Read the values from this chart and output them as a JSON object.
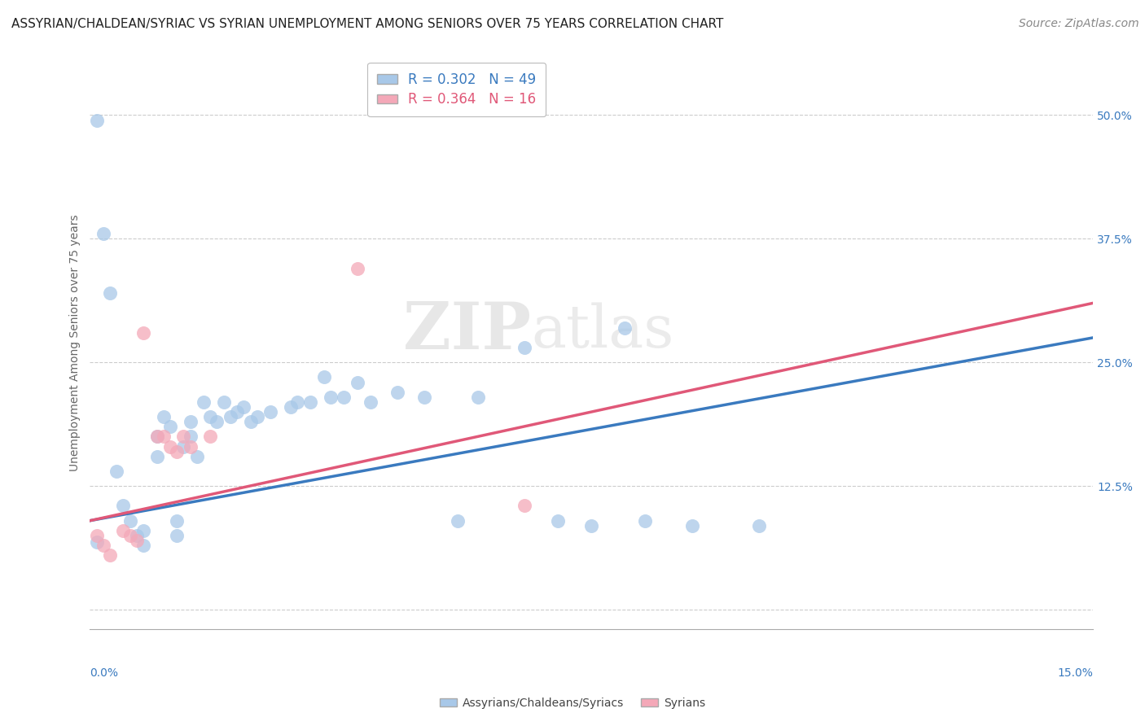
{
  "title": "ASSYRIAN/CHALDEAN/SYRIAC VS SYRIAN UNEMPLOYMENT AMONG SENIORS OVER 75 YEARS CORRELATION CHART",
  "source": "Source: ZipAtlas.com",
  "ylabel": "Unemployment Among Seniors over 75 years",
  "watermark": "ZIPatlas",
  "blue_R": 0.302,
  "blue_N": 49,
  "pink_R": 0.364,
  "pink_N": 16,
  "blue_color": "#a8c8e8",
  "pink_color": "#f4a8b8",
  "blue_line_color": "#3a7abf",
  "pink_line_color": "#e05878",
  "xlim": [
    0.0,
    0.15
  ],
  "ylim": [
    -0.02,
    0.56
  ],
  "blue_scatter": [
    [
      0.001,
      0.495
    ],
    [
      0.001,
      0.068
    ],
    [
      0.002,
      0.38
    ],
    [
      0.003,
      0.32
    ],
    [
      0.004,
      0.14
    ],
    [
      0.005,
      0.105
    ],
    [
      0.006,
      0.09
    ],
    [
      0.007,
      0.075
    ],
    [
      0.008,
      0.08
    ],
    [
      0.008,
      0.065
    ],
    [
      0.01,
      0.175
    ],
    [
      0.01,
      0.155
    ],
    [
      0.011,
      0.195
    ],
    [
      0.012,
      0.185
    ],
    [
      0.013,
      0.09
    ],
    [
      0.013,
      0.075
    ],
    [
      0.014,
      0.165
    ],
    [
      0.015,
      0.175
    ],
    [
      0.015,
      0.19
    ],
    [
      0.016,
      0.155
    ],
    [
      0.017,
      0.21
    ],
    [
      0.018,
      0.195
    ],
    [
      0.019,
      0.19
    ],
    [
      0.02,
      0.21
    ],
    [
      0.021,
      0.195
    ],
    [
      0.022,
      0.2
    ],
    [
      0.023,
      0.205
    ],
    [
      0.024,
      0.19
    ],
    [
      0.025,
      0.195
    ],
    [
      0.027,
      0.2
    ],
    [
      0.03,
      0.205
    ],
    [
      0.031,
      0.21
    ],
    [
      0.033,
      0.21
    ],
    [
      0.035,
      0.235
    ],
    [
      0.036,
      0.215
    ],
    [
      0.038,
      0.215
    ],
    [
      0.04,
      0.23
    ],
    [
      0.042,
      0.21
    ],
    [
      0.046,
      0.22
    ],
    [
      0.05,
      0.215
    ],
    [
      0.055,
      0.09
    ],
    [
      0.058,
      0.215
    ],
    [
      0.065,
      0.265
    ],
    [
      0.07,
      0.09
    ],
    [
      0.075,
      0.085
    ],
    [
      0.08,
      0.285
    ],
    [
      0.083,
      0.09
    ],
    [
      0.09,
      0.085
    ],
    [
      0.1,
      0.085
    ]
  ],
  "pink_scatter": [
    [
      0.001,
      0.075
    ],
    [
      0.002,
      0.065
    ],
    [
      0.003,
      0.055
    ],
    [
      0.005,
      0.08
    ],
    [
      0.006,
      0.075
    ],
    [
      0.007,
      0.07
    ],
    [
      0.008,
      0.28
    ],
    [
      0.01,
      0.175
    ],
    [
      0.011,
      0.175
    ],
    [
      0.012,
      0.165
    ],
    [
      0.013,
      0.16
    ],
    [
      0.014,
      0.175
    ],
    [
      0.015,
      0.165
    ],
    [
      0.018,
      0.175
    ],
    [
      0.04,
      0.345
    ],
    [
      0.065,
      0.105
    ]
  ],
  "blue_line_x": [
    0.0,
    0.15
  ],
  "blue_line_y": [
    0.09,
    0.275
  ],
  "pink_line_x": [
    0.0,
    0.15
  ],
  "pink_line_y": [
    0.09,
    0.31
  ],
  "grid_color": "#cccccc",
  "grid_style": "--",
  "background_color": "#ffffff",
  "title_fontsize": 11,
  "source_fontsize": 10,
  "axis_fontsize": 10,
  "yticks": [
    0.0,
    0.125,
    0.25,
    0.375,
    0.5
  ],
  "ytick_labels": [
    "",
    "12.5%",
    "25.0%",
    "37.5%",
    "50.0%"
  ]
}
